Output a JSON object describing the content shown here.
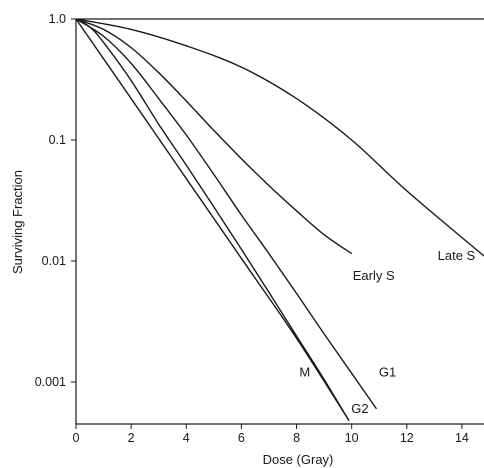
{
  "chart_data": {
    "type": "line",
    "title": "",
    "xlabel": "Dose (Gray)",
    "ylabel": "Surviving Fraction",
    "y_scale": "log",
    "xlim": [
      0,
      14.8
    ],
    "ylim": [
      0.00045,
      1.0
    ],
    "x_ticks": [
      0,
      2,
      4,
      6,
      8,
      10,
      12,
      14
    ],
    "x_tick_labels": [
      "0",
      "2",
      "4",
      "6",
      "8",
      "10",
      "12",
      "14"
    ],
    "y_ticks": [
      1.0,
      0.1,
      0.01,
      0.001
    ],
    "y_tick_labels": [
      "1.0",
      "0.1",
      "0.01",
      "0.001"
    ],
    "grid": false,
    "series": [
      {
        "name": "M",
        "x": [
          0,
          2,
          4,
          6,
          8,
          9.9
        ],
        "y": [
          1.0,
          0.22,
          0.048,
          0.0105,
          0.0023,
          0.00048
        ]
      },
      {
        "name": "G2",
        "x": [
          0,
          0.5,
          1,
          2,
          3,
          4,
          5,
          6,
          7,
          8,
          9,
          9.9
        ],
        "y": [
          1.0,
          0.86,
          0.64,
          0.31,
          0.135,
          0.062,
          0.028,
          0.0125,
          0.0055,
          0.0024,
          0.00105,
          0.00048
        ]
      },
      {
        "name": "G1",
        "x": [
          0,
          1,
          2,
          3,
          4,
          5,
          6,
          7,
          8,
          9,
          10,
          10.9
        ],
        "y": [
          1.0,
          0.72,
          0.43,
          0.22,
          0.11,
          0.052,
          0.024,
          0.0115,
          0.0054,
          0.0025,
          0.00118,
          0.0006
        ]
      },
      {
        "name": "Early S",
        "x": [
          0,
          1,
          2,
          3,
          4,
          5,
          6,
          7,
          8,
          9,
          10
        ],
        "y": [
          1.0,
          0.82,
          0.58,
          0.36,
          0.21,
          0.12,
          0.07,
          0.042,
          0.026,
          0.0165,
          0.0115
        ]
      },
      {
        "name": "Late S",
        "x": [
          0,
          2,
          4,
          6,
          8,
          10,
          12,
          14.8
        ],
        "y": [
          1.0,
          0.82,
          0.6,
          0.4,
          0.22,
          0.1,
          0.038,
          0.011
        ]
      }
    ],
    "labels": [
      {
        "series": "M",
        "text": "M",
        "x": 8.3,
        "y": 0.0012
      },
      {
        "series": "G2",
        "text": "G2",
        "x": 10.3,
        "y": 0.0006
      },
      {
        "series": "G1",
        "text": "G1",
        "x": 11.3,
        "y": 0.0012
      },
      {
        "series": "Early S",
        "text": "Early S",
        "x": 10.8,
        "y": 0.0075
      },
      {
        "series": "Late S",
        "text": "Late S",
        "x": 13.8,
        "y": 0.011
      }
    ]
  }
}
